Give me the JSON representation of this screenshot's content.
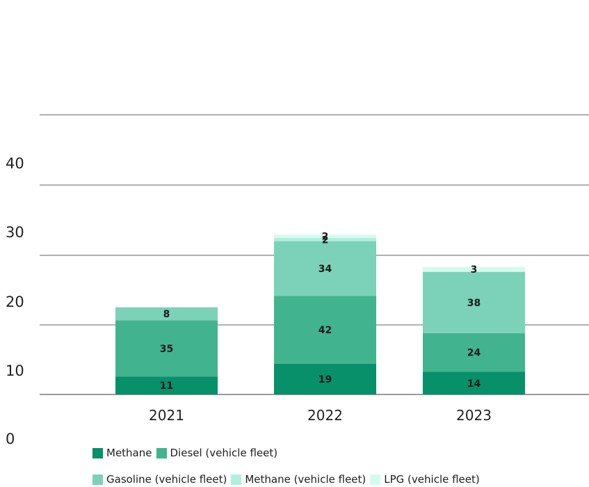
{
  "chart_data": {
    "type": "bar",
    "stacked": true,
    "categories": [
      "2021",
      "2022",
      "2023"
    ],
    "yticks": [
      "0",
      "10",
      "20",
      "30",
      "40"
    ],
    "series": [
      {
        "name": "Methane",
        "color": "#07906a",
        "values": [
          11,
          19,
          14
        ]
      },
      {
        "name": "Diesel (vehicle fleet)",
        "color": "#42b38f",
        "values": [
          35,
          42,
          24
        ]
      },
      {
        "name": "Gasoline (vehicle fleet)",
        "color": "#7bd2b8",
        "values": [
          8,
          34,
          38
        ]
      },
      {
        "name": "Methane (vehicle fleet)",
        "color": "#b3eedd",
        "values": [
          0,
          2,
          0
        ]
      },
      {
        "name": "LPG (vehicle fleet)",
        "color": "#d5fbef",
        "values": [
          0,
          2,
          3
        ]
      }
    ],
    "grid": true,
    "legend_position": "bottom"
  }
}
